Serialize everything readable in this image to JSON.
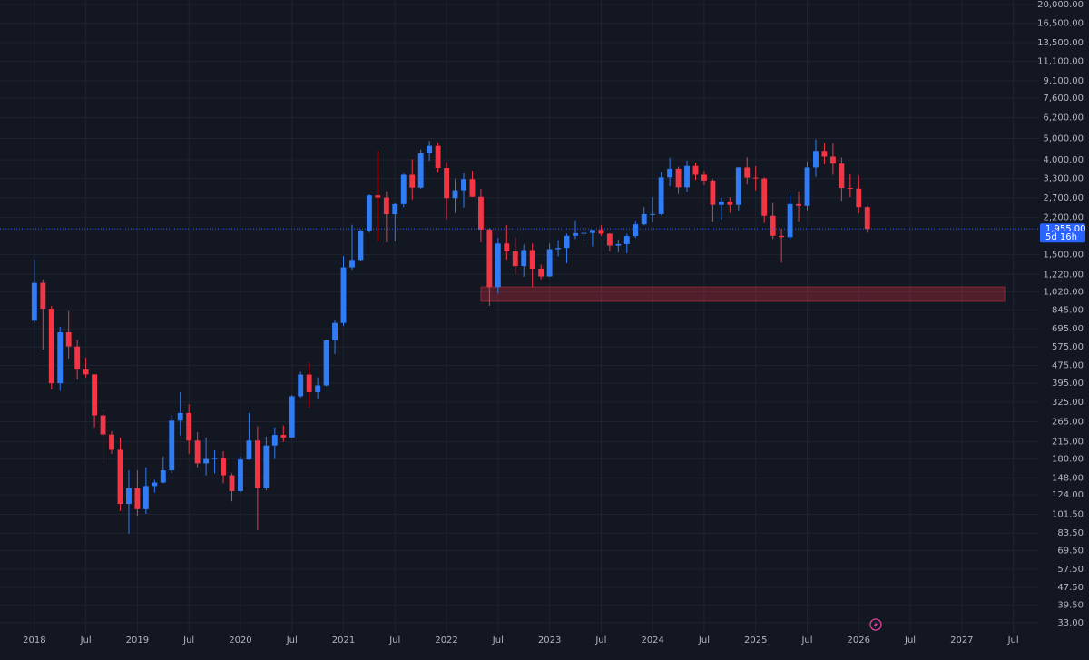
{
  "chart_data": {
    "type": "candlestick",
    "log_scale": true,
    "grid": true,
    "up_color": "#2f7cf6",
    "down_color": "#f23645",
    "xlim": [
      "2017-09",
      "2027-10"
    ],
    "ylim": [
      29.7,
      21000
    ],
    "xticks": [
      {
        "value": "2018-01",
        "label": "2018"
      },
      {
        "value": "2018-07",
        "label": "Jul"
      },
      {
        "value": "2019-01",
        "label": "2019"
      },
      {
        "value": "2019-07",
        "label": "Jul"
      },
      {
        "value": "2020-01",
        "label": "2020"
      },
      {
        "value": "2020-07",
        "label": "Jul"
      },
      {
        "value": "2021-01",
        "label": "2021"
      },
      {
        "value": "2021-07",
        "label": "Jul"
      },
      {
        "value": "2022-01",
        "label": "2022"
      },
      {
        "value": "2022-07",
        "label": "Jul"
      },
      {
        "value": "2023-01",
        "label": "2023"
      },
      {
        "value": "2023-07",
        "label": "Jul"
      },
      {
        "value": "2024-01",
        "label": "2024"
      },
      {
        "value": "2024-07",
        "label": "Jul"
      },
      {
        "value": "2025-01",
        "label": "2025"
      },
      {
        "value": "2025-07",
        "label": "Jul"
      },
      {
        "value": "2026-01",
        "label": "2026"
      },
      {
        "value": "2026-07",
        "label": "Jul"
      },
      {
        "value": "2027-01",
        "label": "2027"
      },
      {
        "value": "2027-07",
        "label": "Jul"
      }
    ],
    "yticks": [
      {
        "value": 20000,
        "label": "20,000.00"
      },
      {
        "value": 16500,
        "label": "16,500.00"
      },
      {
        "value": 13500,
        "label": "13,500.00"
      },
      {
        "value": 11100,
        "label": "11,100.00"
      },
      {
        "value": 9100,
        "label": "9,100.00"
      },
      {
        "value": 7600,
        "label": "7,600.00"
      },
      {
        "value": 6200,
        "label": "6,200.00"
      },
      {
        "value": 5000,
        "label": "5,000.00"
      },
      {
        "value": 4000,
        "label": "4,000.00"
      },
      {
        "value": 3300,
        "label": "3,300.00"
      },
      {
        "value": 2700,
        "label": "2,700.00"
      },
      {
        "value": 2200,
        "label": "2,200.00"
      },
      {
        "value": 1500,
        "label": "1,500.00"
      },
      {
        "value": 1220,
        "label": "1,220.00"
      },
      {
        "value": 1020,
        "label": "1,020.00"
      },
      {
        "value": 845,
        "label": "845.00"
      },
      {
        "value": 695,
        "label": "695.00"
      },
      {
        "value": 575,
        "label": "575.00"
      },
      {
        "value": 475,
        "label": "475.00"
      },
      {
        "value": 395,
        "label": "395.00"
      },
      {
        "value": 325,
        "label": "325.00"
      },
      {
        "value": 265,
        "label": "265.00"
      },
      {
        "value": 215,
        "label": "215.00"
      },
      {
        "value": 180,
        "label": "180.00"
      },
      {
        "value": 148,
        "label": "148.00"
      },
      {
        "value": 124,
        "label": "124.00"
      },
      {
        "value": 101.5,
        "label": "101.50"
      },
      {
        "value": 83.5,
        "label": "83.50"
      },
      {
        "value": 69.5,
        "label": "69.50"
      },
      {
        "value": 57.5,
        "label": "57.50"
      },
      {
        "value": 47.5,
        "label": "47.50"
      },
      {
        "value": 39.5,
        "label": "39.50"
      },
      {
        "value": 33,
        "label": "33.00"
      }
    ],
    "last_price": {
      "value": 1955,
      "label": "1,955.00"
    },
    "countdown": "5d 16h",
    "zone": {
      "from": "2022-05",
      "to": "2027-06",
      "low": 922,
      "high": 1072,
      "color": "#f23645"
    },
    "x": [
      "2018-01",
      "2018-02",
      "2018-03",
      "2018-04",
      "2018-05",
      "2018-06",
      "2018-07",
      "2018-08",
      "2018-09",
      "2018-10",
      "2018-11",
      "2018-12",
      "2019-01",
      "2019-02",
      "2019-03",
      "2019-04",
      "2019-05",
      "2019-06",
      "2019-07",
      "2019-08",
      "2019-09",
      "2019-10",
      "2019-11",
      "2019-12",
      "2020-01",
      "2020-02",
      "2020-03",
      "2020-04",
      "2020-05",
      "2020-06",
      "2020-07",
      "2020-08",
      "2020-09",
      "2020-10",
      "2020-11",
      "2020-12",
      "2021-01",
      "2021-02",
      "2021-03",
      "2021-04",
      "2021-05",
      "2021-06",
      "2021-07",
      "2021-08",
      "2021-09",
      "2021-10",
      "2021-11",
      "2021-12",
      "2022-01",
      "2022-02",
      "2022-03",
      "2022-04",
      "2022-05",
      "2022-06",
      "2022-07",
      "2022-08",
      "2022-09",
      "2022-10",
      "2022-11",
      "2022-12",
      "2023-01",
      "2023-02",
      "2023-03",
      "2023-04",
      "2023-05",
      "2023-06",
      "2023-07",
      "2023-08",
      "2023-09",
      "2023-10",
      "2023-11",
      "2023-12",
      "2024-01",
      "2024-02",
      "2024-03",
      "2024-04",
      "2024-05",
      "2024-06",
      "2024-07",
      "2024-08",
      "2024-09",
      "2024-10",
      "2024-11",
      "2024-12",
      "2025-01",
      "2025-02",
      "2025-03",
      "2025-04",
      "2025-05",
      "2025-06",
      "2025-07",
      "2025-08",
      "2025-09",
      "2025-10",
      "2025-11",
      "2025-12",
      "2026-01",
      "2026-02"
    ],
    "open": [
      755,
      1118,
      855,
      395,
      670,
      578,
      455,
      433,
      283,
      232,
      198,
      113,
      133,
      107,
      136,
      141,
      160,
      268,
      290,
      218,
      172,
      180,
      182,
      152,
      129,
      179,
      218,
      133,
      207,
      231,
      225,
      345,
      432,
      360,
      386,
      616,
      738,
      1312,
      1418,
      1918,
      2770,
      2710,
      2275,
      2530,
      3430,
      3000,
      4290,
      4630,
      3680,
      2690,
      2920,
      3280,
      2730,
      1940,
      1070,
      1680,
      1550,
      1330,
      1570,
      1295,
      1195,
      1585,
      1605,
      1820,
      1870,
      1875,
      1935,
      1860,
      1645,
      1670,
      1815,
      2050,
      2280,
      2280,
      3340,
      3650,
      3010,
      3760,
      3430,
      3230,
      2510,
      2600,
      2510,
      3700,
      3330,
      3300,
      2240,
      1820,
      1795,
      2530,
      2485,
      3700,
      4390,
      4140,
      3850,
      2990,
      2970,
      2450
    ],
    "high": [
      1420,
      1160,
      880,
      710,
      835,
      620,
      515,
      433,
      300,
      240,
      225,
      160,
      160,
      165,
      145,
      185,
      285,
      360,
      318,
      238,
      225,
      197,
      195,
      155,
      185,
      290,
      253,
      227,
      250,
      255,
      350,
      445,
      488,
      420,
      620,
      760,
      1475,
      2040,
      1945,
      2800,
      4380,
      2890,
      2550,
      3470,
      4030,
      4460,
      4870,
      4780,
      3900,
      3290,
      3480,
      3580,
      2960,
      1970,
      1780,
      2030,
      1790,
      1660,
      1680,
      1350,
      1680,
      1740,
      1860,
      2140,
      1930,
      1930,
      2030,
      1870,
      1750,
      1860,
      2130,
      2450,
      2720,
      3520,
      4090,
      3730,
      3970,
      3890,
      3560,
      3280,
      2710,
      2720,
      3720,
      4110,
      3750,
      3340,
      2560,
      1960,
      2790,
      2880,
      3940,
      4950,
      4770,
      4750,
      4100,
      3450,
      3400,
      2480
    ],
    "low": [
      740,
      560,
      370,
      365,
      510,
      410,
      420,
      250,
      170,
      190,
      105,
      83,
      100,
      102,
      127,
      140,
      155,
      230,
      190,
      165,
      152,
      155,
      140,
      116,
      127,
      178,
      86,
      130,
      180,
      215,
      224,
      340,
      308,
      335,
      383,
      535,
      715,
      1280,
      1400,
      1880,
      1720,
      1700,
      1720,
      2450,
      2650,
      2970,
      3960,
      3500,
      2160,
      2300,
      2440,
      2720,
      1700,
      880,
      1000,
      1420,
      1220,
      1190,
      1075,
      1160,
      1190,
      1470,
      1370,
      1760,
      1740,
      1630,
      1820,
      1550,
      1530,
      1520,
      1780,
      2030,
      2100,
      2250,
      3050,
      2810,
      2870,
      3250,
      3080,
      2110,
      2150,
      2310,
      2370,
      3100,
      2920,
      2080,
      1760,
      1380,
      1750,
      2110,
      2370,
      3360,
      3820,
      3430,
      2620,
      2720,
      2300,
      1880
    ],
    "close": [
      1118,
      855,
      395,
      670,
      578,
      455,
      433,
      283,
      232,
      198,
      113,
      133,
      107,
      136,
      141,
      160,
      268,
      290,
      218,
      172,
      180,
      182,
      152,
      129,
      179,
      218,
      133,
      207,
      231,
      225,
      345,
      432,
      360,
      386,
      616,
      738,
      1312,
      1418,
      1918,
      2770,
      2710,
      2275,
      2530,
      3430,
      3000,
      4290,
      4630,
      3680,
      2690,
      2920,
      3280,
      2730,
      1940,
      1070,
      1680,
      1550,
      1330,
      1570,
      1295,
      1195,
      1585,
      1605,
      1820,
      1870,
      1875,
      1935,
      1860,
      1645,
      1670,
      1815,
      2050,
      2280,
      2280,
      3340,
      3650,
      3010,
      3760,
      3430,
      3230,
      2510,
      2600,
      2510,
      3700,
      3330,
      3300,
      2240,
      1820,
      1795,
      2530,
      2485,
      3700,
      4390,
      4140,
      3850,
      2990,
      2970,
      2450,
      1955
    ]
  }
}
